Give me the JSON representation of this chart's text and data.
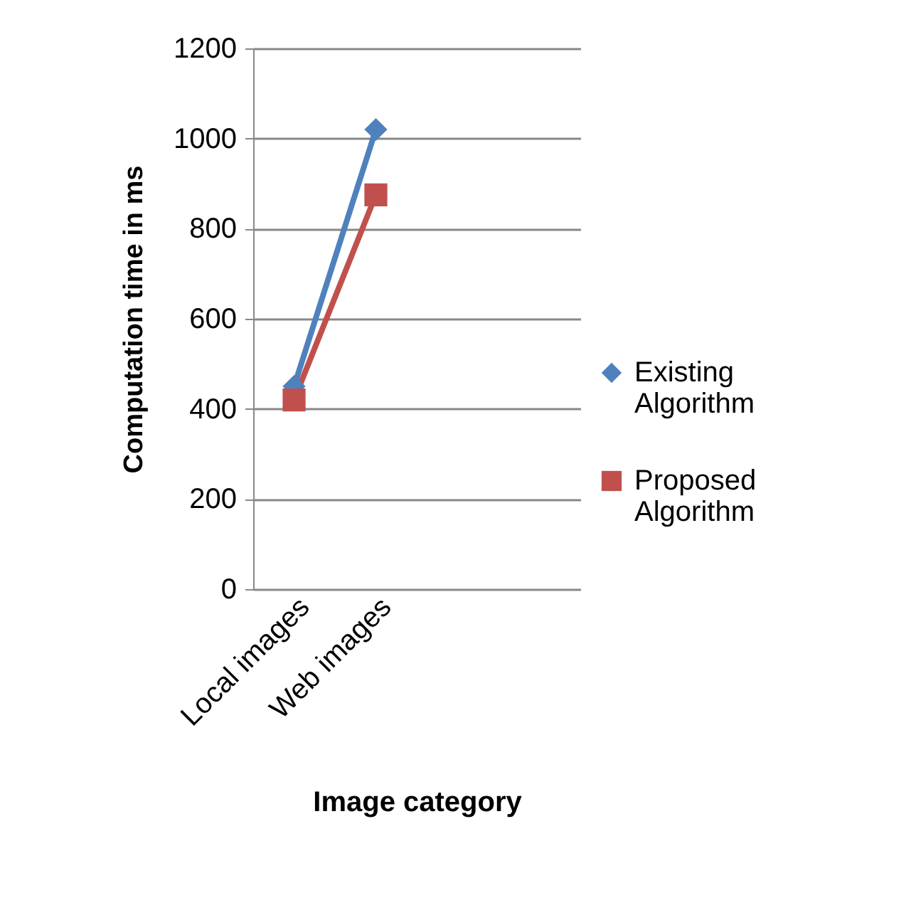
{
  "chart_data": {
    "type": "line",
    "xlabel": "Image category",
    "ylabel": "Computation time in ms",
    "categories": [
      "Local images",
      "Web images",
      null,
      null
    ],
    "series": [
      {
        "name": "Existing Algorithm",
        "color": "#4f81bd",
        "marker": "diamond",
        "values": [
          450,
          1020,
          null,
          null
        ]
      },
      {
        "name": "Proposed Algorithm",
        "color": "#c0504d",
        "marker": "square",
        "values": [
          420,
          875,
          null,
          null
        ]
      }
    ],
    "ylim": [
      0,
      1200
    ],
    "yticks": [
      0,
      200,
      400,
      600,
      800,
      1000,
      1200
    ],
    "grid": "y",
    "legend": "right"
  }
}
